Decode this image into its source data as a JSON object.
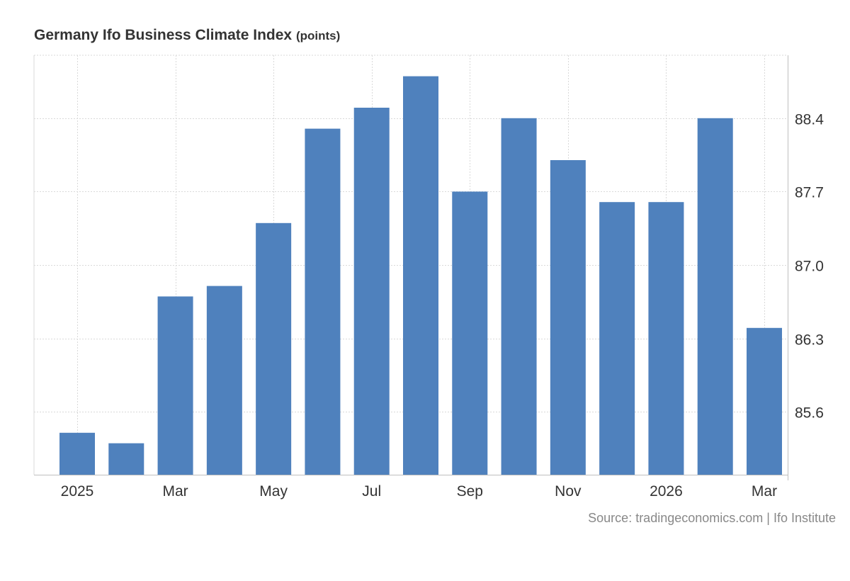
{
  "header": {
    "title": "Germany Ifo Business Climate Index",
    "unit": "(points)"
  },
  "footer": {
    "source": "Source: tradingeconomics.com | Ifo Institute"
  },
  "colors": {
    "bar": "#4f81bd",
    "grid": "#d9d9d9",
    "axis": "#bfbfbf",
    "text": "#333333"
  },
  "chart_data": {
    "type": "bar",
    "title": "Germany Ifo Business Climate Index",
    "unit": "(points)",
    "categories": [
      "Jan 2025",
      "Feb 2025",
      "Mar 2025",
      "Apr 2025",
      "May 2025",
      "Jun 2025",
      "Jul 2025",
      "Aug 2025",
      "Sep 2025",
      "Oct 2025",
      "Nov 2025",
      "Dec 2025",
      "Jan 2026",
      "Feb 2026",
      "Mar 2026"
    ],
    "x_tick_labels": [
      "2025",
      "Mar",
      "May",
      "Jul",
      "Sep",
      "Nov",
      "2026",
      "Mar"
    ],
    "x_tick_indices": [
      0,
      2,
      4,
      6,
      8,
      10,
      12,
      14
    ],
    "series": [
      {
        "values": [
          85.4,
          85.3,
          86.7,
          86.8,
          87.4,
          88.3,
          88.5,
          88.8,
          87.7,
          88.4,
          88.0,
          87.6,
          87.6,
          88.4,
          86.4
        ]
      }
    ],
    "y_ticks": [
      85.6,
      86.3,
      87.0,
      87.7,
      88.4
    ],
    "y_tick_labels": [
      "85.6",
      "86.3",
      "87.0",
      "87.7",
      "88.4"
    ],
    "ylim": [
      85.0,
      89.0
    ],
    "y_axis_position": "right",
    "grid": true,
    "legend": "none"
  }
}
